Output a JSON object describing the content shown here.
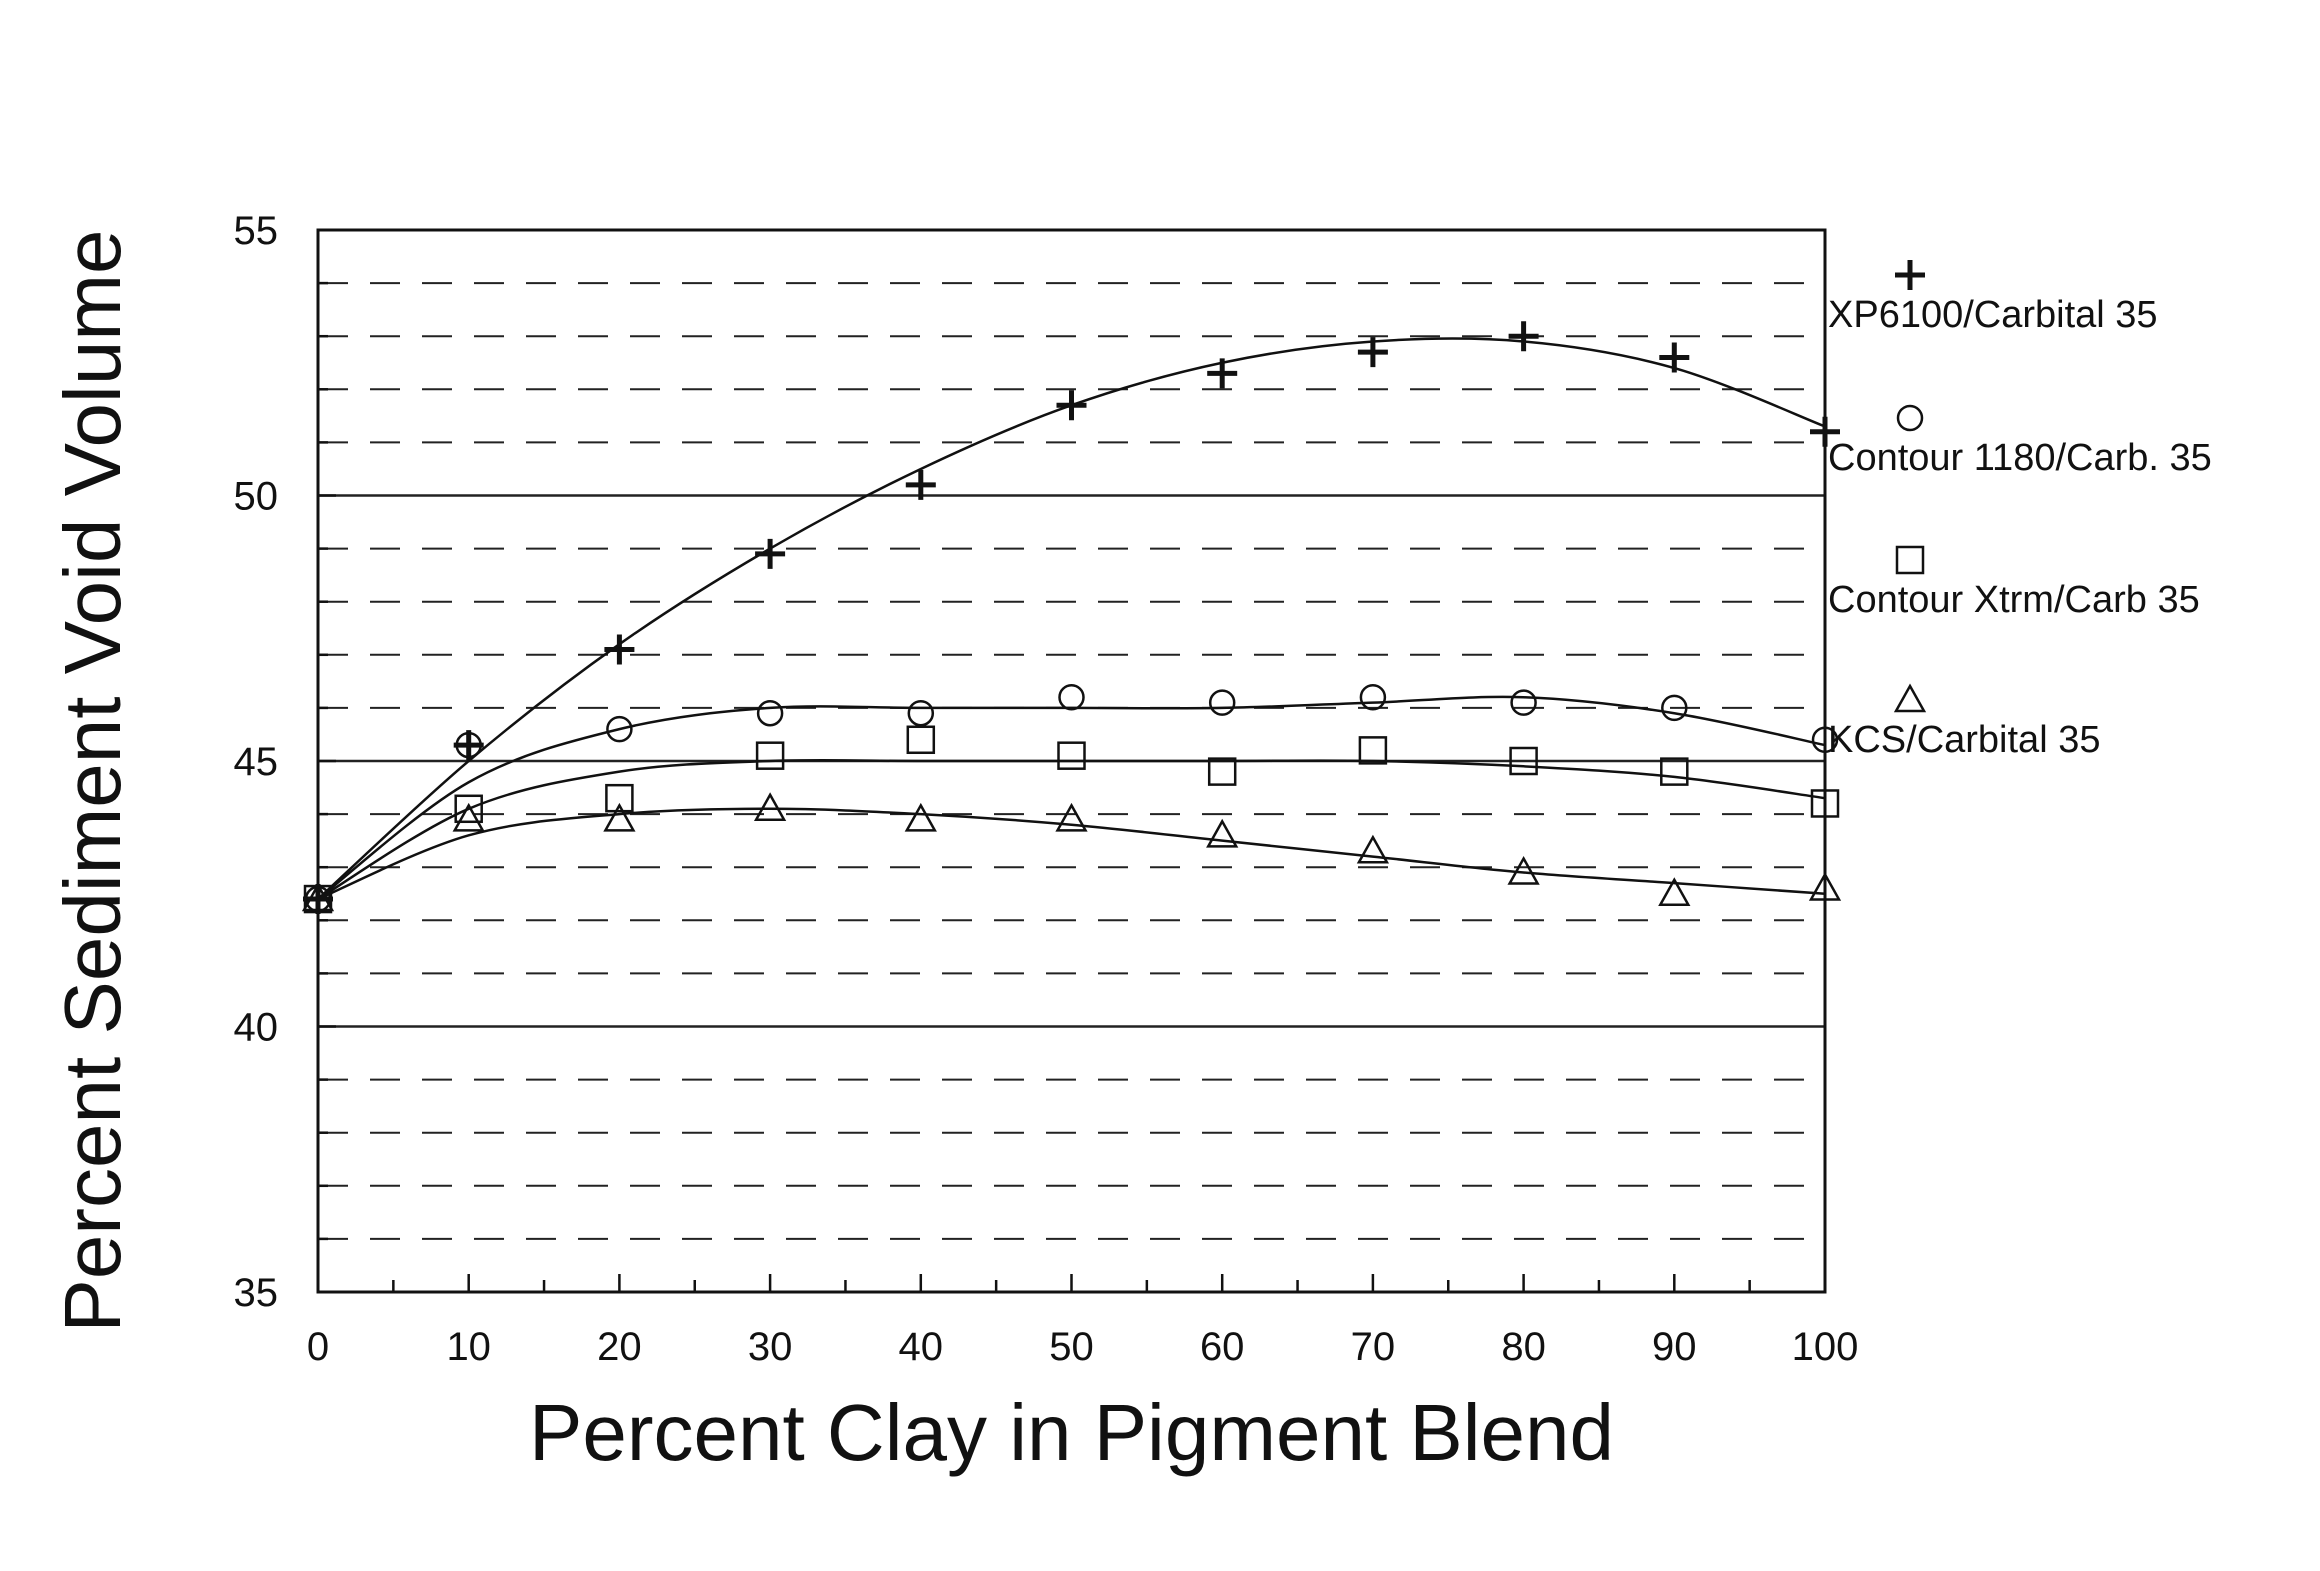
{
  "chart_data": {
    "type": "scatter",
    "title": "",
    "xlabel": "Percent Clay in Pigment Blend",
    "ylabel": "Percent Sediment Void Volume",
    "xlim": [
      0,
      100
    ],
    "ylim": [
      35,
      55
    ],
    "xticks": [
      0,
      10,
      20,
      30,
      40,
      50,
      60,
      70,
      80,
      90,
      100
    ],
    "yticks": [
      35,
      40,
      45,
      50,
      55
    ],
    "grid": {
      "major_y": "solid",
      "minor_y": "dashed",
      "minor_step": 1
    },
    "legend_position": "right",
    "trendlines": "smooth fitted curve per series",
    "x": [
      0,
      10,
      20,
      30,
      40,
      50,
      60,
      70,
      80,
      90,
      100
    ],
    "series": [
      {
        "name": "XP6100/Carbital  35",
        "marker": "plus",
        "values": [
          42.4,
          45.3,
          47.1,
          48.9,
          50.2,
          51.7,
          52.3,
          52.7,
          53.0,
          52.6,
          51.2
        ]
      },
      {
        "name": "Contour  1180/Carb.  35",
        "marker": "circle",
        "values": [
          42.4,
          45.3,
          45.6,
          45.9,
          45.9,
          46.2,
          46.1,
          46.2,
          46.1,
          46.0,
          45.4
        ]
      },
      {
        "name": "Contour  Xtrm/Carb  35",
        "marker": "square",
        "values": [
          42.4,
          44.1,
          44.3,
          45.1,
          45.4,
          45.1,
          44.8,
          45.2,
          45.0,
          44.8,
          44.2
        ]
      },
      {
        "name": "KCS/Carbital  35",
        "marker": "triangle",
        "values": [
          42.4,
          43.9,
          43.9,
          44.1,
          43.9,
          43.9,
          43.6,
          43.3,
          42.9,
          42.5,
          42.6
        ]
      }
    ],
    "fits": [
      [
        42.4,
        45.0,
        47.2,
        49.0,
        50.5,
        51.7,
        52.5,
        52.9,
        52.9,
        52.4,
        51.3
      ],
      [
        42.4,
        44.6,
        45.6,
        46.0,
        46.0,
        46.0,
        46.0,
        46.1,
        46.2,
        45.9,
        45.3
      ],
      [
        42.4,
        44.1,
        44.8,
        45.0,
        45.0,
        45.0,
        45.0,
        45.0,
        44.9,
        44.7,
        44.3
      ],
      [
        42.4,
        43.6,
        44.0,
        44.1,
        44.0,
        43.8,
        43.5,
        43.2,
        42.9,
        42.7,
        42.5
      ]
    ]
  }
}
